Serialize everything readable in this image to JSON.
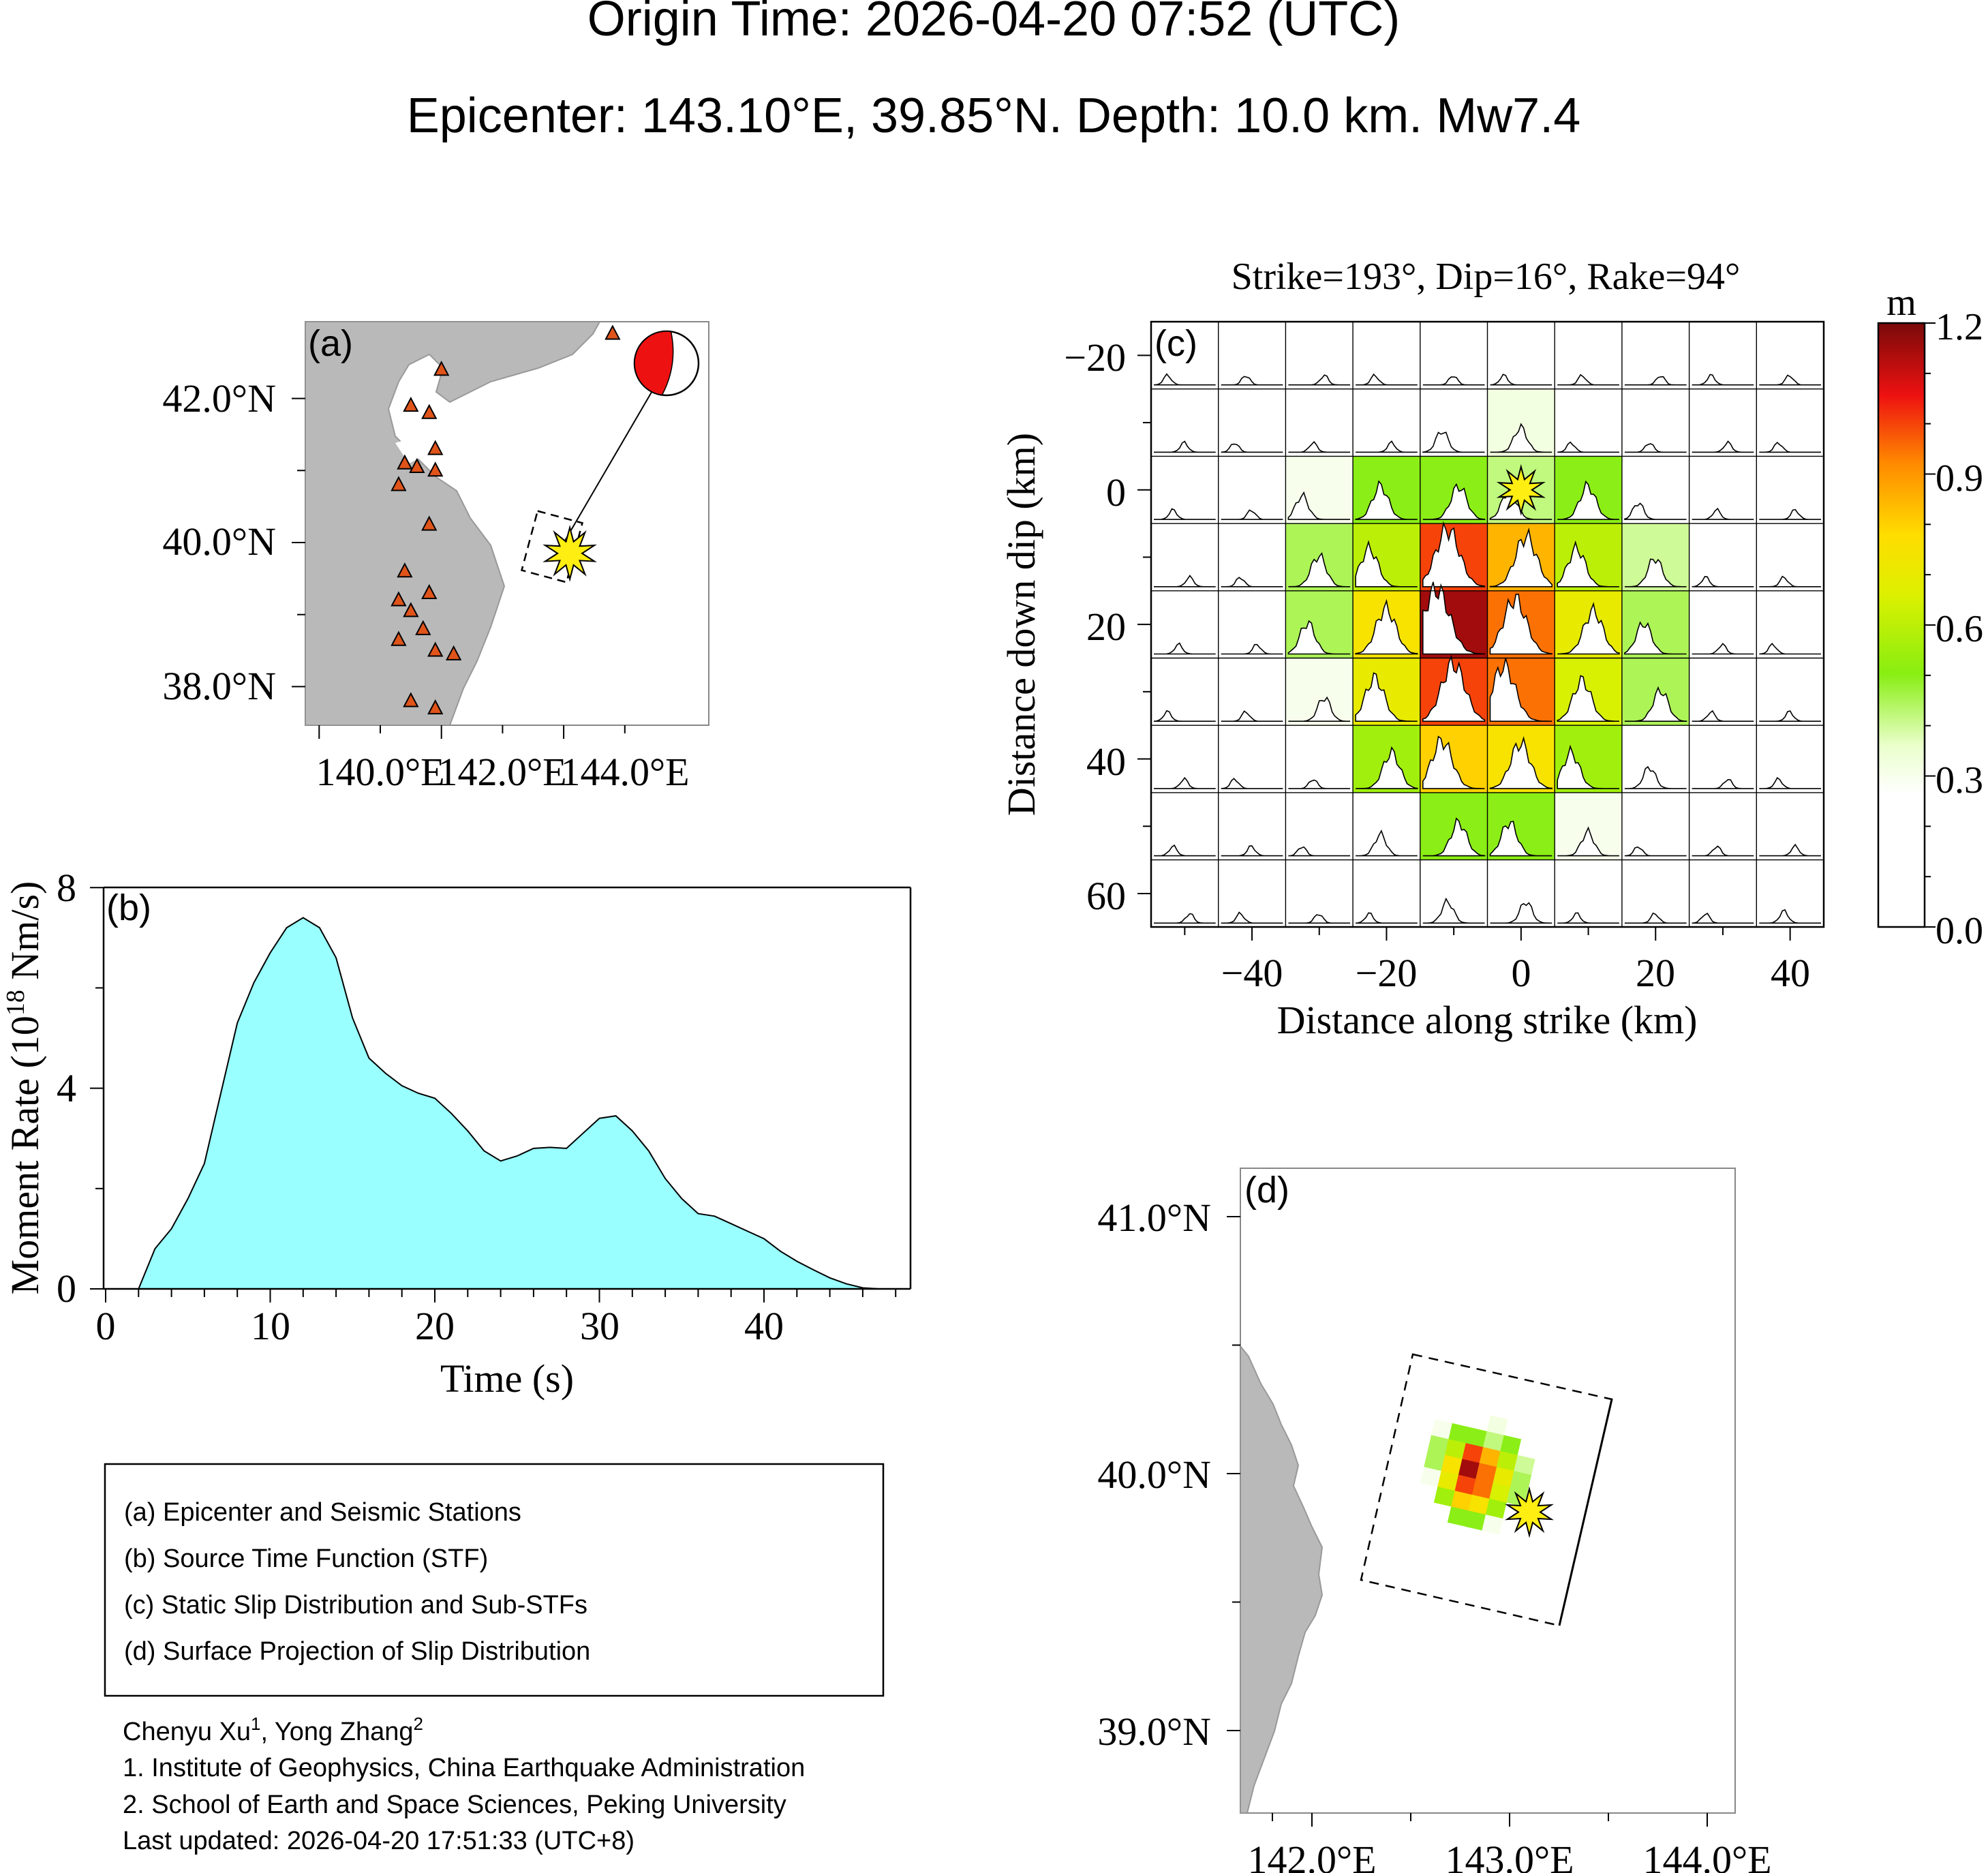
{
  "header": {
    "line1": "Origin Time: 2026-04-20 07:52 (UTC)",
    "line2": "Epicenter: 143.10°E, 39.85°N. Depth: 10.0 km. Mw7.4"
  },
  "colors": {
    "stf_fill": "#99ffff",
    "land": "#b9b9b9",
    "station": "#e0541a",
    "epicenter_star": "#ffee11",
    "beachball": "#ee1111"
  },
  "chart_data": [
    {
      "id": "a",
      "type": "map",
      "panel_label": "(a)",
      "xticks": [
        "140.0°E",
        "142.0°E",
        "144.0°E"
      ],
      "yticks": [
        "42.0°N",
        "40.0°N",
        "38.0°N"
      ],
      "epicenter": {
        "lon": 143.1,
        "lat": 39.85
      },
      "stations": [
        [
          143.8,
          42.9
        ],
        [
          141.0,
          42.4
        ],
        [
          140.5,
          41.9
        ],
        [
          140.8,
          41.8
        ],
        [
          140.9,
          41.3
        ],
        [
          140.4,
          41.1
        ],
        [
          140.6,
          41.05
        ],
        [
          140.9,
          41.0
        ],
        [
          140.3,
          40.8
        ],
        [
          140.8,
          40.25
        ],
        [
          140.4,
          39.6
        ],
        [
          140.8,
          39.3
        ],
        [
          140.3,
          39.2
        ],
        [
          140.5,
          39.05
        ],
        [
          140.7,
          38.8
        ],
        [
          140.3,
          38.65
        ],
        [
          140.9,
          38.5
        ],
        [
          141.2,
          38.45
        ],
        [
          140.5,
          37.8
        ],
        [
          140.9,
          37.7
        ]
      ]
    },
    {
      "id": "b",
      "type": "area",
      "panel_label": "(b)",
      "xlabel": "Time (s)",
      "ylabel_main": "Moment Rate (10",
      "ylabel_sup": "18",
      "ylabel_tail": " Nm/s)",
      "xlim": [
        0,
        49
      ],
      "ylim": [
        0,
        8
      ],
      "xticks": [
        "0",
        "10",
        "20",
        "30",
        "40"
      ],
      "yticks": [
        "0",
        "4",
        "8"
      ],
      "x": [
        2,
        3,
        4,
        5,
        6,
        7,
        8,
        9,
        10,
        11,
        12,
        13,
        14,
        15,
        16,
        17,
        18,
        19,
        20,
        21,
        22,
        23,
        24,
        25,
        26,
        27,
        28,
        29,
        30,
        31,
        32,
        33,
        34,
        35,
        36,
        37,
        38,
        39,
        40,
        41,
        42,
        43,
        44,
        45,
        46,
        47
      ],
      "values": [
        0,
        0.8,
        1.2,
        1.8,
        2.5,
        3.9,
        5.3,
        6.1,
        6.7,
        7.2,
        7.4,
        7.2,
        6.6,
        5.4,
        4.6,
        4.3,
        4.05,
        3.9,
        3.8,
        3.5,
        3.15,
        2.75,
        2.55,
        2.65,
        2.8,
        2.82,
        2.8,
        3.1,
        3.4,
        3.45,
        3.15,
        2.75,
        2.2,
        1.8,
        1.5,
        1.45,
        1.3,
        1.15,
        1.0,
        0.75,
        0.55,
        0.38,
        0.22,
        0.1,
        0.02,
        0
      ]
    },
    {
      "id": "c",
      "type": "heatmap",
      "panel_label": "(c)",
      "title": "Strike=193°, Dip=16°, Rake=94°",
      "xlabel": "Distance along strike (km)",
      "ylabel": "Distance down dip (km)",
      "xlim": [
        -55,
        45
      ],
      "ylim": [
        -25,
        65
      ],
      "xticks": [
        "−40",
        "−20",
        "0",
        "20",
        "40"
      ],
      "yticks": [
        "−20",
        "0",
        "20",
        "40",
        "60"
      ],
      "colorbar_unit": "m",
      "colorbar_ticks": [
        "1.2",
        "0.9",
        "0.6",
        "0.3",
        "0.0"
      ],
      "cmax": 1.2,
      "grid_x0": -55,
      "grid_y0": -25,
      "cell_km": 10,
      "slip": [
        [
          0,
          0,
          0,
          0,
          0,
          0,
          0,
          0,
          0,
          0
        ],
        [
          0,
          0,
          0,
          0,
          0.25,
          0.32,
          0,
          0,
          0,
          0
        ],
        [
          0,
          0,
          0.3,
          0.5,
          0.5,
          0.42,
          0.5,
          0.15,
          0,
          0
        ],
        [
          0,
          0,
          0.45,
          0.6,
          1.0,
          0.85,
          0.6,
          0.4,
          0,
          0
        ],
        [
          0,
          0,
          0.45,
          0.75,
          1.15,
          0.95,
          0.7,
          0.45,
          0,
          0
        ],
        [
          0,
          0,
          0.3,
          0.7,
          1.0,
          0.95,
          0.65,
          0.45,
          0,
          0
        ],
        [
          0,
          0,
          0,
          0.55,
          0.8,
          0.75,
          0.55,
          0.25,
          0,
          0
        ],
        [
          0,
          0,
          0,
          0.25,
          0.5,
          0.5,
          0.3,
          0,
          0,
          0
        ],
        [
          0,
          0,
          0,
          0,
          0.25,
          0.25,
          0,
          0,
          0,
          0.05
        ]
      ],
      "hypocenter": {
        "x": 0,
        "y": 0
      }
    },
    {
      "id": "d",
      "type": "map",
      "panel_label": "(d)",
      "xticks": [
        "142.0°E",
        "143.0°E",
        "144.0°E"
      ],
      "yticks": [
        "41.0°N",
        "40.0°N",
        "39.0°N"
      ]
    }
  ],
  "legend": {
    "items": [
      "(a) Epicenter and Seismic Stations",
      "(b) Source Time Function (STF)",
      "(c) Static Slip Distribution and Sub-STFs",
      "(d) Surface Projection of Slip Distribution"
    ]
  },
  "credits": {
    "authors": "Chenyu Xu",
    "sup1": "1",
    "author2": ", Yong Zhang",
    "sup2": "2",
    "affil1": "1. Institute of Geophysics, China Earthquake Administration",
    "affil2": "2. School of Earth and Space Sciences, Peking University",
    "updated": "Last updated: 2026-04-20 17:51:33 (UTC+8)"
  }
}
